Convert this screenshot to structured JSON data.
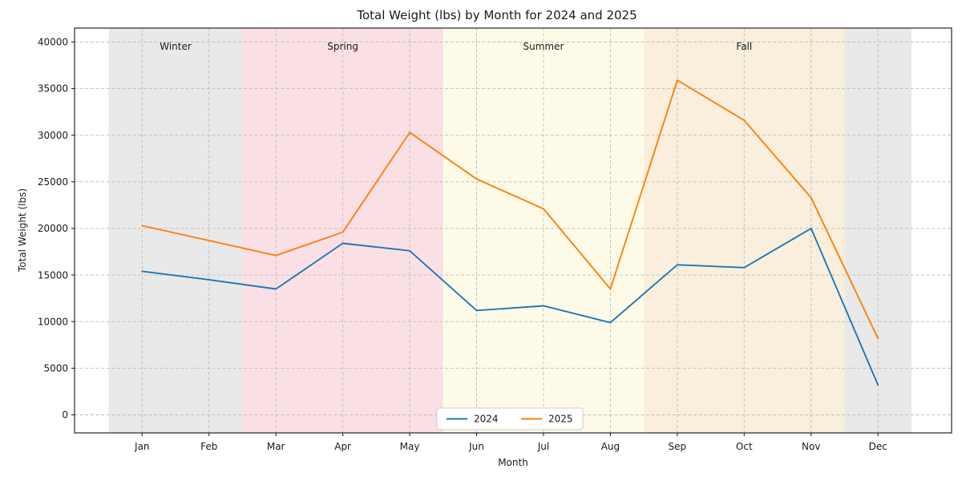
{
  "figure": {
    "title": "Total Weight (lbs) by Month for 2024 and 2025",
    "xlabel": "Month",
    "ylabel": "Total Weight (lbs)"
  },
  "chart_data": {
    "type": "line",
    "title": "Total Weight (lbs) by Month for 2024 and 2025",
    "xlabel": "Month",
    "ylabel": "Total Weight (lbs)",
    "categories": [
      "Jan",
      "Feb",
      "Mar",
      "Apr",
      "May",
      "Jun",
      "Jul",
      "Aug",
      "Sep",
      "Oct",
      "Nov",
      "Dec"
    ],
    "series": [
      {
        "name": "2024",
        "color": "#1f77b4",
        "values": [
          15400,
          14500,
          13500,
          18400,
          17600,
          11200,
          11700,
          9900,
          16100,
          15800,
          20000,
          3200
        ]
      },
      {
        "name": "2025",
        "color": "#ff7f0e",
        "values": [
          20300,
          18700,
          17100,
          19600,
          30300,
          25300,
          22100,
          13500,
          35900,
          31600,
          23300,
          8200
        ]
      }
    ],
    "yticks": [
      0,
      5000,
      10000,
      15000,
      20000,
      25000,
      30000,
      35000,
      40000
    ],
    "ylim": [
      -1935,
      41495
    ],
    "xlim": [
      -1.01,
      12.1
    ],
    "grid": "dashed",
    "legend_position": "lower center",
    "bands": [
      {
        "label": "Winter",
        "start": -0.5,
        "end": 1.5,
        "color": "#e9e9e9",
        "show_label": true
      },
      {
        "label": "Spring",
        "start": 1.5,
        "end": 4.5,
        "color": "#fae0e4",
        "show_label": true
      },
      {
        "label": "Summer",
        "start": 4.5,
        "end": 7.5,
        "color": "#fdfbe7",
        "show_label": true
      },
      {
        "label": "Fall",
        "start": 7.5,
        "end": 10.5,
        "color": "#f9efdc",
        "show_label": true
      },
      {
        "label": "Winter",
        "start": 10.5,
        "end": 11.5,
        "color": "#e9e9e9",
        "show_label": false
      }
    ],
    "style": {
      "grid_color": "#bdbdbd",
      "spine_color": "#262626",
      "tick_font_size": 12,
      "season_label_font_size": 12,
      "legend_font_size": 12,
      "legend_border_color": "#cccccc"
    }
  }
}
